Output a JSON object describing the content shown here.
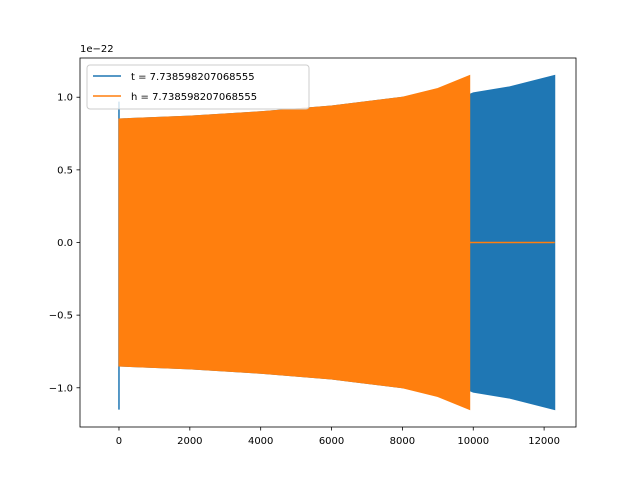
{
  "chart_data": {
    "type": "line",
    "title": "",
    "xlabel": "",
    "ylabel": "",
    "y_offset_label": "1e−22",
    "xlim": [
      -1100,
      12900
    ],
    "ylim": [
      -1.27,
      1.27
    ],
    "x_ticks": [
      0,
      2000,
      4000,
      6000,
      8000,
      10000,
      12000
    ],
    "x_tick_labels": [
      "0",
      "2000",
      "4000",
      "6000",
      "8000",
      "10000",
      "12000"
    ],
    "y_ticks": [
      -1.0,
      -0.5,
      0.0,
      0.5,
      1.0
    ],
    "y_tick_labels": [
      "−1.0",
      "−0.5",
      "0.0",
      "0.5",
      "1.0"
    ],
    "grid": false,
    "legend_position": "upper-left",
    "series": [
      {
        "name": "t = 7.738598207068555",
        "color": "#1f77b4",
        "envelope": {
          "x": [
            0,
            2000,
            4000,
            6000,
            8000,
            9900,
            10000,
            11000,
            12300
          ],
          "upper": [
            0.85,
            0.87,
            0.9,
            0.94,
            1.0,
            1.02,
            1.03,
            1.07,
            1.15
          ],
          "lower": [
            -0.85,
            -0.87,
            -0.9,
            -0.94,
            -1.0,
            -1.02,
            -1.03,
            -1.07,
            -1.15
          ]
        },
        "spike": {
          "x": 0,
          "min": -1.15,
          "max": 0.97
        }
      },
      {
        "name": "h = 7.738598207068555",
        "color": "#ff7f0e",
        "envelope": {
          "x": [
            0,
            2000,
            4000,
            6000,
            8000,
            9000,
            9900
          ],
          "upper": [
            0.85,
            0.87,
            0.9,
            0.94,
            1.0,
            1.06,
            1.15
          ],
          "lower": [
            -0.85,
            -0.87,
            -0.9,
            -0.94,
            -1.0,
            -1.06,
            -1.15
          ]
        },
        "tail": {
          "x_start": 9900,
          "x_end": 12300,
          "y": 0.0
        }
      }
    ]
  }
}
